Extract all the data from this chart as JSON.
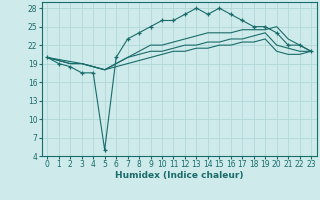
{
  "xlabel": "Humidex (Indice chaleur)",
  "bg_color": "#ceeaea",
  "grid_color": "#b0d8d8",
  "line_color": "#1a6b6b",
  "xlim": [
    -0.5,
    23.5
  ],
  "ylim": [
    4,
    29
  ],
  "xticks": [
    0,
    1,
    2,
    3,
    4,
    5,
    6,
    7,
    8,
    9,
    10,
    11,
    12,
    13,
    14,
    15,
    16,
    17,
    18,
    19,
    20,
    21,
    22,
    23
  ],
  "yticks": [
    4,
    7,
    10,
    13,
    16,
    19,
    22,
    25,
    28
  ],
  "series": {
    "line1_x": [
      0,
      1,
      2,
      3,
      4,
      5,
      6,
      7,
      8,
      9,
      10,
      11,
      12,
      13,
      14,
      15,
      16,
      17,
      18,
      19,
      20,
      21,
      22,
      23
    ],
    "line1_y": [
      20,
      19,
      18.5,
      17.5,
      17.5,
      5,
      20,
      23,
      24,
      25,
      26,
      26,
      27,
      28,
      27,
      28,
      27,
      26,
      25,
      25,
      24,
      22,
      22,
      21
    ],
    "line2_x": [
      0,
      3,
      4,
      5,
      6,
      7,
      8,
      9,
      10,
      11,
      12,
      13,
      14,
      15,
      16,
      17,
      18,
      19,
      20,
      21,
      22,
      23
    ],
    "line2_y": [
      20,
      19,
      18.5,
      18,
      19,
      20,
      21,
      22,
      22,
      22.5,
      23,
      23.5,
      24,
      24,
      24,
      24.5,
      24.5,
      24.5,
      25,
      23,
      22,
      21
    ],
    "line3_x": [
      0,
      1,
      2,
      3,
      4,
      5,
      6,
      7,
      8,
      9,
      10,
      11,
      12,
      13,
      14,
      15,
      16,
      17,
      18,
      19,
      20,
      21,
      22,
      23
    ],
    "line3_y": [
      20,
      19.5,
      19,
      19,
      18.5,
      18,
      19,
      20,
      20.5,
      21,
      21,
      21.5,
      22,
      22,
      22.5,
      22.5,
      23,
      23,
      23.5,
      24,
      22,
      21.5,
      21,
      21
    ],
    "line4_x": [
      0,
      1,
      2,
      3,
      4,
      5,
      6,
      7,
      8,
      9,
      10,
      11,
      12,
      13,
      14,
      15,
      16,
      17,
      18,
      19,
      20,
      21,
      22,
      23
    ],
    "line4_y": [
      20,
      19.5,
      19,
      19,
      18.5,
      18,
      18.5,
      19,
      19.5,
      20,
      20.5,
      21,
      21,
      21.5,
      21.5,
      22,
      22,
      22.5,
      22.5,
      23,
      21,
      20.5,
      20.5,
      21
    ]
  }
}
